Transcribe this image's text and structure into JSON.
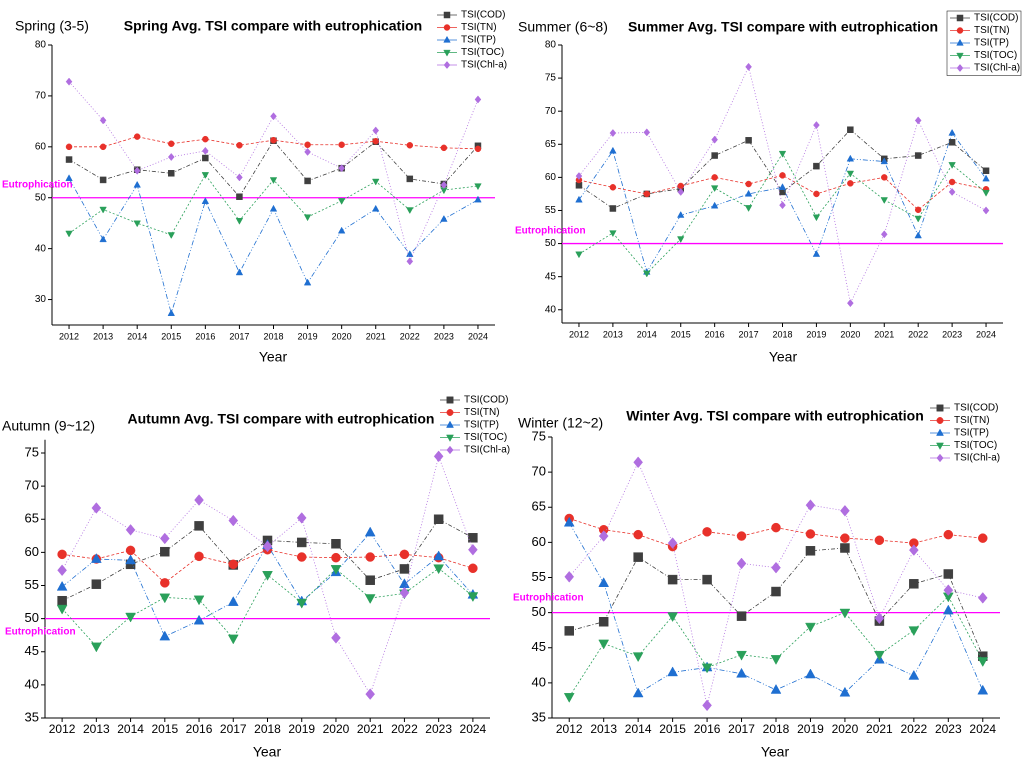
{
  "chart_data": [
    {
      "type": "line",
      "panel_label": "Spring (3-5)",
      "title": "Spring Avg. TSI compare with eutrophication",
      "xlabel": "Year",
      "categories": [
        "2012",
        "2013",
        "2014",
        "2015",
        "2016",
        "2017",
        "2018",
        "2019",
        "2020",
        "2021",
        "2022",
        "2023",
        "2024"
      ],
      "ylim": [
        25,
        80
      ],
      "yticks": [
        30,
        40,
        50,
        60,
        70,
        80
      ],
      "legend": "top-right",
      "reference_line": {
        "value": 50,
        "label": "Eutrophication",
        "color": "#ff00ff"
      },
      "series": [
        {
          "name": "TSI(COD)",
          "color": "#3f3f3f",
          "marker": "square",
          "values": [
            57.5,
            53.5,
            55.5,
            54.8,
            57.8,
            50.2,
            61.2,
            53.3,
            55.8,
            61.0,
            53.7,
            52.7,
            60.2
          ]
        },
        {
          "name": "TSI(TN)",
          "color": "#e8312a",
          "marker": "circle",
          "values": [
            60.0,
            60.0,
            62.0,
            60.6,
            61.5,
            60.3,
            61.3,
            60.4,
            60.4,
            61.1,
            60.3,
            59.8,
            59.6
          ]
        },
        {
          "name": "TSI(TP)",
          "color": "#1f6fd1",
          "marker": "triangle-up",
          "values": [
            53.8,
            41.8,
            52.5,
            27.3,
            49.3,
            35.3,
            47.8,
            33.3,
            43.5,
            47.8,
            38.9,
            45.8,
            49.6
          ]
        },
        {
          "name": "TSI(TOC)",
          "color": "#2aa05a",
          "marker": "triangle-down",
          "values": [
            43.0,
            47.7,
            45.0,
            42.7,
            54.5,
            45.5,
            53.5,
            46.2,
            49.4,
            53.2,
            47.6,
            51.5,
            52.3
          ]
        },
        {
          "name": "TSI(Chl-a)",
          "color": "#b06ee0",
          "marker": "diamond",
          "values": [
            72.8,
            65.2,
            55.3,
            58.0,
            59.2,
            54.0,
            66.0,
            59.0,
            55.8,
            63.2,
            37.5,
            52.5,
            69.3
          ]
        }
      ]
    },
    {
      "type": "line",
      "panel_label": "Summer (6~8)",
      "title": "Summer Avg. TSI compare with eutrophication",
      "xlabel": "Year",
      "categories": [
        "2012",
        "2013",
        "2014",
        "2015",
        "2016",
        "2017",
        "2018",
        "2019",
        "2020",
        "2021",
        "2022",
        "2023",
        "2024"
      ],
      "ylim": [
        38,
        80
      ],
      "yticks": [
        40,
        45,
        50,
        55,
        60,
        65,
        70,
        75,
        80
      ],
      "legend": "top-right",
      "reference_line": {
        "value": 50,
        "label": "Eutrophication",
        "color": "#ff00ff"
      },
      "series": [
        {
          "name": "TSI(COD)",
          "color": "#3f3f3f",
          "marker": "square",
          "values": [
            58.8,
            55.3,
            57.5,
            58.3,
            63.3,
            65.6,
            57.8,
            61.7,
            67.2,
            62.8,
            63.3,
            65.3,
            61.0
          ]
        },
        {
          "name": "TSI(TN)",
          "color": "#e8312a",
          "marker": "circle",
          "values": [
            59.6,
            58.5,
            57.5,
            58.7,
            60.0,
            59.0,
            60.3,
            57.5,
            59.1,
            60.0,
            55.1,
            59.3,
            58.2
          ]
        },
        {
          "name": "TSI(TP)",
          "color": "#1f6fd1",
          "marker": "triangle-up",
          "values": [
            56.6,
            64.0,
            45.7,
            54.3,
            55.7,
            57.5,
            58.5,
            48.4,
            62.8,
            62.4,
            51.2,
            66.7,
            59.8
          ]
        },
        {
          "name": "TSI(TOC)",
          "color": "#2aa05a",
          "marker": "triangle-down",
          "values": [
            48.4,
            51.6,
            45.5,
            50.7,
            58.4,
            55.4,
            63.6,
            54.0,
            60.6,
            56.6,
            53.8,
            61.9,
            57.7
          ]
        },
        {
          "name": "TSI(Chl-a)",
          "color": "#b06ee0",
          "marker": "diamond",
          "values": [
            60.2,
            66.7,
            66.8,
            57.8,
            65.7,
            76.7,
            55.8,
            67.9,
            41.0,
            51.4,
            68.6,
            57.8,
            55.0
          ]
        }
      ]
    },
    {
      "type": "line",
      "panel_label": "Autumn (9~12)",
      "title": "Autumn Avg. TSI compare with eutrophication",
      "xlabel": "Year",
      "categories": [
        "2012",
        "2013",
        "2014",
        "2015",
        "2016",
        "2017",
        "2018",
        "2019",
        "2020",
        "2021",
        "2022",
        "2023",
        "2024"
      ],
      "ylim": [
        35,
        77
      ],
      "yticks": [
        35,
        40,
        45,
        50,
        55,
        60,
        65,
        70,
        75
      ],
      "legend": "top-right",
      "reference_line": {
        "value": 50,
        "label": "Eutrophication",
        "color": "#ff00ff"
      },
      "series": [
        {
          "name": "TSI(COD)",
          "color": "#3f3f3f",
          "marker": "square",
          "values": [
            52.7,
            55.2,
            58.2,
            60.1,
            64.0,
            58.1,
            61.8,
            61.5,
            61.3,
            55.8,
            57.5,
            65.0,
            62.2
          ]
        },
        {
          "name": "TSI(TN)",
          "color": "#e8312a",
          "marker": "circle",
          "values": [
            59.7,
            59.0,
            60.3,
            55.4,
            59.4,
            58.2,
            60.4,
            59.3,
            59.2,
            59.3,
            59.7,
            59.2,
            57.6
          ]
        },
        {
          "name": "TSI(TP)",
          "color": "#1f6fd1",
          "marker": "triangle-up",
          "values": [
            54.8,
            59.0,
            58.8,
            47.3,
            49.7,
            52.5,
            61.1,
            52.6,
            57.0,
            63.0,
            55.2,
            59.4,
            53.6
          ]
        },
        {
          "name": "TSI(TOC)",
          "color": "#2aa05a",
          "marker": "triangle-down",
          "values": [
            51.5,
            45.8,
            50.3,
            53.2,
            52.9,
            47.0,
            56.6,
            52.4,
            57.5,
            53.1,
            53.8,
            57.6,
            53.4
          ]
        },
        {
          "name": "TSI(Chl-a)",
          "color": "#b06ee0",
          "marker": "diamond",
          "values": [
            57.3,
            66.7,
            63.4,
            62.1,
            67.9,
            64.8,
            60.9,
            65.2,
            47.1,
            38.6,
            53.9,
            74.5,
            60.4
          ]
        }
      ]
    },
    {
      "type": "line",
      "panel_label": "Winter (12~2)",
      "title": "Winter Avg. TSI compare with eutrophication",
      "xlabel": "Year",
      "categories": [
        "2012",
        "2013",
        "2014",
        "2015",
        "2016",
        "2017",
        "2018",
        "2019",
        "2020",
        "2021",
        "2022",
        "2023",
        "2024"
      ],
      "ylim": [
        35,
        75
      ],
      "yticks": [
        35,
        40,
        45,
        50,
        55,
        60,
        65,
        70,
        75
      ],
      "legend": "top-right",
      "reference_line": {
        "value": 50,
        "label": "Eutrophication",
        "color": "#ff00ff"
      },
      "series": [
        {
          "name": "TSI(COD)",
          "color": "#3f3f3f",
          "marker": "square",
          "values": [
            47.4,
            48.7,
            57.9,
            54.7,
            54.7,
            49.5,
            53.0,
            58.8,
            59.2,
            48.8,
            54.1,
            55.5,
            43.8
          ]
        },
        {
          "name": "TSI(TN)",
          "color": "#e8312a",
          "marker": "circle",
          "values": [
            63.4,
            61.8,
            61.1,
            59.4,
            61.5,
            60.9,
            62.1,
            61.2,
            60.6,
            60.3,
            59.9,
            61.1,
            60.6
          ]
        },
        {
          "name": "TSI(TP)",
          "color": "#1f6fd1",
          "marker": "triangle-up",
          "values": [
            62.8,
            54.2,
            38.5,
            41.5,
            42.2,
            41.3,
            39.0,
            41.2,
            38.6,
            43.3,
            41.0,
            50.3,
            38.9
          ]
        },
        {
          "name": "TSI(TOC)",
          "color": "#2aa05a",
          "marker": "triangle-down",
          "values": [
            38.0,
            45.6,
            43.8,
            49.5,
            42.2,
            44.0,
            43.4,
            48.0,
            50.0,
            44.0,
            47.5,
            52.3,
            43.1
          ]
        },
        {
          "name": "TSI(Chl-a)",
          "color": "#b06ee0",
          "marker": "diamond",
          "values": [
            55.1,
            60.9,
            71.4,
            59.9,
            36.8,
            57.0,
            56.4,
            65.3,
            64.5,
            49.2,
            58.9,
            53.2,
            52.1
          ]
        }
      ]
    }
  ]
}
